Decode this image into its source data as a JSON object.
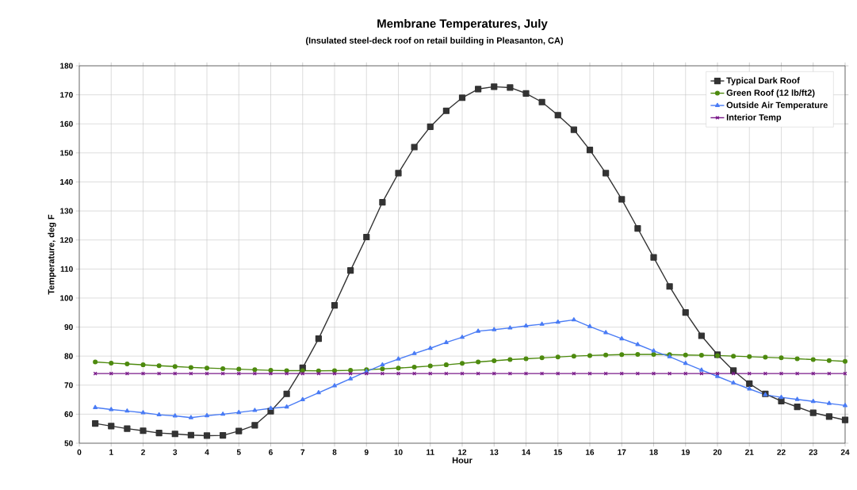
{
  "chart_data": {
    "type": "line",
    "title": "Membrane Temperatures, July",
    "subtitle": "(Insulated steel-deck roof on retail building in Pleasanton, CA)",
    "xlabel": "Hour",
    "ylabel": "Temperature, deg F",
    "x": [
      0.5,
      1,
      1.5,
      2,
      2.5,
      3,
      3.5,
      4,
      4.5,
      5,
      5.5,
      6,
      6.5,
      7,
      7.5,
      8,
      8.5,
      9,
      9.5,
      10,
      10.5,
      11,
      11.5,
      12,
      12.5,
      13,
      13.5,
      14,
      14.5,
      15,
      15.5,
      16,
      16.5,
      17,
      17.5,
      18,
      18.5,
      19,
      19.5,
      20,
      20.5,
      21,
      21.5,
      22,
      22.5,
      23,
      23.5,
      24
    ],
    "series": [
      {
        "name": "Typical Dark Roof",
        "color": "#333333",
        "marker": "square",
        "values": [
          56.8,
          55.9,
          55,
          54.3,
          53.5,
          53.2,
          52.8,
          52.6,
          52.7,
          54.2,
          56.2,
          61,
          67,
          76,
          86,
          97.5,
          109.5,
          121,
          133,
          143,
          152,
          159,
          164.5,
          169,
          172,
          172.8,
          172.5,
          170.5,
          167.5,
          163,
          158,
          151,
          143,
          134,
          124,
          114,
          104,
          95,
          87,
          80.5,
          75,
          70.5,
          67,
          64.5,
          62.5,
          60.5,
          59.2,
          58
        ]
      },
      {
        "name": "Green Roof (12 lb/ft2)",
        "color": "#4d8a0e",
        "marker": "circle",
        "values": [
          78,
          77.6,
          77.3,
          77,
          76.7,
          76.4,
          76.1,
          75.9,
          75.7,
          75.5,
          75.3,
          75.1,
          75,
          75,
          74.9,
          75,
          75.1,
          75.3,
          75.6,
          75.9,
          76.2,
          76.6,
          77,
          77.5,
          78,
          78.4,
          78.8,
          79.1,
          79.4,
          79.7,
          80,
          80.2,
          80.4,
          80.5,
          80.6,
          80.6,
          80.5,
          80.4,
          80.3,
          80.2,
          80,
          79.8,
          79.6,
          79.4,
          79.1,
          78.8,
          78.5,
          78.2
        ]
      },
      {
        "name": "Outside Air Temperature",
        "color": "#4a7cf5",
        "marker": "triangle",
        "values": [
          62.3,
          61.6,
          61.1,
          60.5,
          59.8,
          59.4,
          58.8,
          59.5,
          60,
          60.6,
          61.3,
          62,
          62.5,
          65,
          67.4,
          69.8,
          72.2,
          74.7,
          77,
          79,
          80.9,
          82.7,
          84.7,
          86.5,
          88.6,
          89.1,
          89.7,
          90.4,
          91,
          91.7,
          92.5,
          90.2,
          88.1,
          86,
          84,
          81.8,
          79.8,
          77.5,
          75.2,
          73,
          70.8,
          68.7,
          66.7,
          65.8,
          65.1,
          64.4,
          63.7,
          63
        ]
      },
      {
        "name": "Interior Temp",
        "color": "#7a1a8a",
        "marker": "cross",
        "values": [
          74,
          74,
          74,
          74,
          74,
          74,
          74,
          74,
          74,
          74,
          74,
          74,
          74,
          74,
          74,
          74,
          74,
          74,
          74,
          74,
          74,
          74,
          74,
          74,
          74,
          74,
          74,
          74,
          74,
          74,
          74,
          74,
          74,
          74,
          74,
          74,
          74,
          74,
          74,
          74,
          74,
          74,
          74,
          74,
          74,
          74,
          74,
          74
        ]
      }
    ],
    "xlim": [
      0,
      24
    ],
    "xticks": [
      0,
      1,
      2,
      3,
      4,
      5,
      6,
      7,
      8,
      9,
      10,
      11,
      12,
      13,
      14,
      15,
      16,
      17,
      18,
      19,
      20,
      21,
      22,
      23,
      24
    ],
    "ylim": [
      50,
      180
    ],
    "yticks": [
      50,
      60,
      70,
      80,
      90,
      100,
      110,
      120,
      130,
      140,
      150,
      160,
      170,
      180
    ],
    "grid": true,
    "legend": "top right",
    "line_style": "solid"
  }
}
